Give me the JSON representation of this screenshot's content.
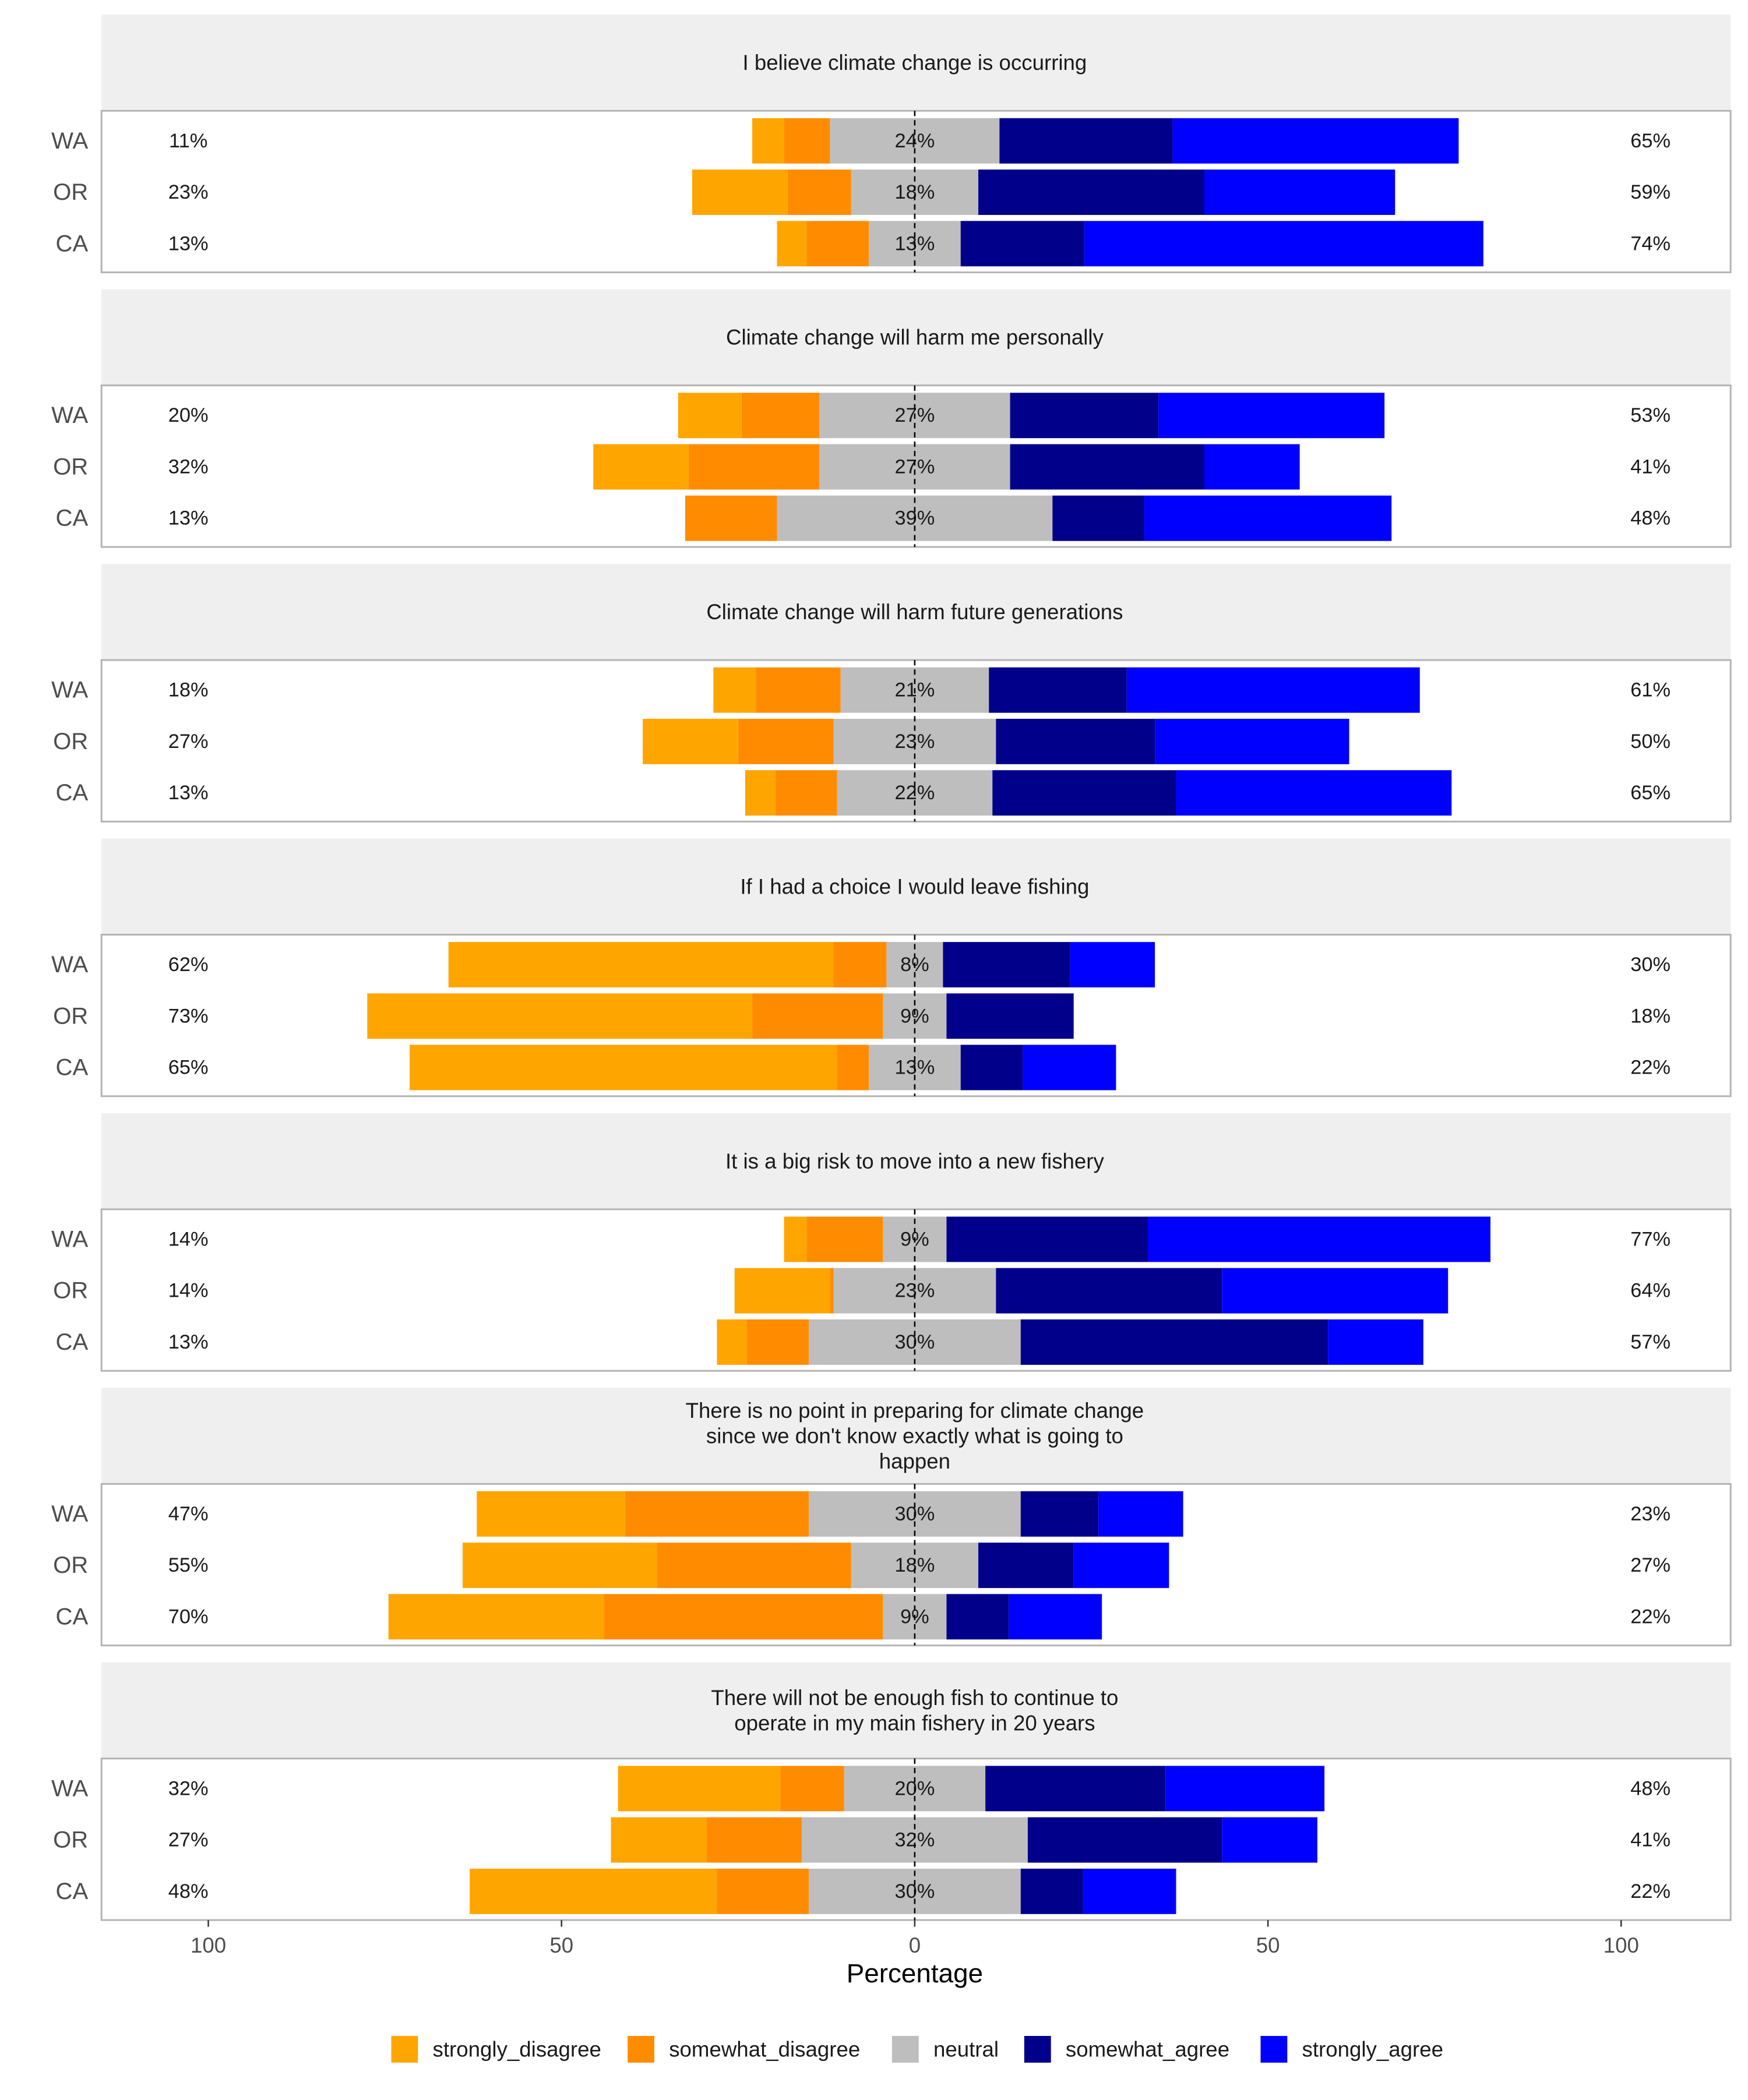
{
  "chart_data": {
    "type": "bar",
    "subtype": "diverging-stacked-likert",
    "xlabel": "Percentage",
    "xlim": [
      -100,
      100
    ],
    "x_ticks": [
      {
        "value": -100,
        "label": "100"
      },
      {
        "value": -50,
        "label": "50"
      },
      {
        "value": 0,
        "label": "0"
      },
      {
        "value": 50,
        "label": "50"
      },
      {
        "value": 100,
        "label": "100"
      }
    ],
    "categories": [
      "WA",
      "OR",
      "CA"
    ],
    "legend_position": "bottom",
    "legend": [
      {
        "key": "strongly_disagree",
        "label": "strongly_disagree",
        "color": "#FFA500"
      },
      {
        "key": "somewhat_disagree",
        "label": "somewhat_disagree",
        "color": "#FF8C00"
      },
      {
        "key": "neutral",
        "label": "neutral",
        "color": "#BEBEBE"
      },
      {
        "key": "somewhat_agree",
        "label": "somewhat_agree",
        "color": "#00008B"
      },
      {
        "key": "strongly_agree",
        "label": "strongly_agree",
        "color": "#0000FF"
      }
    ],
    "panels": [
      {
        "title": [
          "I believe climate change is occurring"
        ],
        "rows": [
          {
            "region": "WA",
            "left_label": "11%",
            "center_label": "24%",
            "right_label": "65%",
            "values": {
              "strongly_disagree": 4.5,
              "somewhat_disagree": 6.5,
              "neutral": 24,
              "somewhat_agree": 24.5,
              "strongly_agree": 40.5
            }
          },
          {
            "region": "OR",
            "left_label": "23%",
            "center_label": "18%",
            "right_label": "59%",
            "values": {
              "strongly_disagree": 13.5,
              "somewhat_disagree": 9.0,
              "neutral": 18,
              "somewhat_agree": 32.0,
              "strongly_agree": 27.0
            }
          },
          {
            "region": "CA",
            "left_label": "13%",
            "center_label": "13%",
            "right_label": "74%",
            "values": {
              "strongly_disagree": 4.2,
              "somewhat_disagree": 8.8,
              "neutral": 13,
              "somewhat_agree": 17.5,
              "strongly_agree": 56.5
            }
          }
        ]
      },
      {
        "title": [
          "Climate change will harm me personally"
        ],
        "rows": [
          {
            "region": "WA",
            "left_label": "20%",
            "center_label": "27%",
            "right_label": "53%",
            "values": {
              "strongly_disagree": 9.0,
              "somewhat_disagree": 11.0,
              "neutral": 27,
              "somewhat_agree": 21.0,
              "strongly_agree": 32.0
            }
          },
          {
            "region": "OR",
            "left_label": "32%",
            "center_label": "27%",
            "right_label": "41%",
            "values": {
              "strongly_disagree": 13.5,
              "somewhat_disagree": 18.5,
              "neutral": 27,
              "somewhat_agree": 27.5,
              "strongly_agree": 13.5
            }
          },
          {
            "region": "CA",
            "left_label": "13%",
            "center_label": "39%",
            "right_label": "48%",
            "values": {
              "strongly_disagree": 0,
              "somewhat_disagree": 13.0,
              "neutral": 39,
              "somewhat_agree": 13.0,
              "strongly_agree": 35.0
            }
          }
        ]
      },
      {
        "title": [
          "Climate change will harm future generations"
        ],
        "rows": [
          {
            "region": "WA",
            "left_label": "18%",
            "center_label": "21%",
            "right_label": "61%",
            "values": {
              "strongly_disagree": 6.0,
              "somewhat_disagree": 12.0,
              "neutral": 21,
              "somewhat_agree": 19.5,
              "strongly_agree": 41.5
            }
          },
          {
            "region": "OR",
            "left_label": "27%",
            "center_label": "23%",
            "right_label": "50%",
            "values": {
              "strongly_disagree": 13.5,
              "somewhat_disagree": 13.5,
              "neutral": 23,
              "somewhat_agree": 22.5,
              "strongly_agree": 27.5
            }
          },
          {
            "region": "CA",
            "left_label": "13%",
            "center_label": "22%",
            "right_label": "65%",
            "values": {
              "strongly_disagree": 4.3,
              "somewhat_disagree": 8.7,
              "neutral": 22,
              "somewhat_agree": 26.0,
              "strongly_agree": 39.0
            }
          }
        ]
      },
      {
        "title": [
          "If I had a choice I would leave fishing"
        ],
        "rows": [
          {
            "region": "WA",
            "left_label": "62%",
            "center_label": "8%",
            "right_label": "30%",
            "values": {
              "strongly_disagree": 54.5,
              "somewhat_disagree": 7.5,
              "neutral": 8,
              "somewhat_agree": 18.0,
              "strongly_agree": 12.0
            }
          },
          {
            "region": "OR",
            "left_label": "73%",
            "center_label": "9%",
            "right_label": "18%",
            "values": {
              "strongly_disagree": 54.5,
              "somewhat_disagree": 18.5,
              "neutral": 9,
              "somewhat_agree": 18.0,
              "strongly_agree": 0
            }
          },
          {
            "region": "CA",
            "left_label": "65%",
            "center_label": "13%",
            "right_label": "22%",
            "values": {
              "strongly_disagree": 60.5,
              "somewhat_disagree": 4.5,
              "neutral": 13,
              "somewhat_agree": 8.8,
              "strongly_agree": 13.2
            }
          }
        ]
      },
      {
        "title": [
          "It is a big risk to move into a new fishery"
        ],
        "rows": [
          {
            "region": "WA",
            "left_label": "14%",
            "center_label": "9%",
            "right_label": "77%",
            "values": {
              "strongly_disagree": 3.2,
              "somewhat_disagree": 10.8,
              "neutral": 9,
              "somewhat_agree": 28.5,
              "strongly_agree": 48.5
            }
          },
          {
            "region": "OR",
            "left_label": "14%",
            "center_label": "23%",
            "right_label": "64%",
            "values": {
              "strongly_disagree": 13.5,
              "somewhat_disagree": 0.5,
              "neutral": 23,
              "somewhat_agree": 32.0,
              "strongly_agree": 32.0
            }
          },
          {
            "region": "CA",
            "left_label": "13%",
            "center_label": "30%",
            "right_label": "57%",
            "values": {
              "strongly_disagree": 4.2,
              "somewhat_disagree": 8.8,
              "neutral": 30,
              "somewhat_agree": 43.5,
              "strongly_agree": 13.5
            }
          }
        ]
      },
      {
        "title": [
          "There is no point in preparing for climate change",
          "since we don't know exactly what is going to",
          "happen"
        ],
        "rows": [
          {
            "region": "WA",
            "left_label": "47%",
            "center_label": "30%",
            "right_label": "23%",
            "values": {
              "strongly_disagree": 21.0,
              "somewhat_disagree": 26.0,
              "neutral": 30,
              "somewhat_agree": 11.0,
              "strongly_agree": 12.0
            }
          },
          {
            "region": "OR",
            "left_label": "55%",
            "center_label": "18%",
            "right_label": "27%",
            "values": {
              "strongly_disagree": 27.5,
              "somewhat_disagree": 27.5,
              "neutral": 18,
              "somewhat_agree": 13.5,
              "strongly_agree": 13.5
            }
          },
          {
            "region": "CA",
            "left_label": "70%",
            "center_label": "9%",
            "right_label": "22%",
            "values": {
              "strongly_disagree": 30.5,
              "somewhat_disagree": 39.5,
              "neutral": 9,
              "somewhat_agree": 8.8,
              "strongly_agree": 13.2
            }
          }
        ]
      },
      {
        "title": [
          "There will not be enough fish to continue to",
          "operate in my main fishery in 20 years"
        ],
        "rows": [
          {
            "region": "WA",
            "left_label": "32%",
            "center_label": "20%",
            "right_label": "48%",
            "values": {
              "strongly_disagree": 23.0,
              "somewhat_disagree": 9.0,
              "neutral": 20,
              "somewhat_agree": 25.5,
              "strongly_agree": 22.5
            }
          },
          {
            "region": "OR",
            "left_label": "27%",
            "center_label": "32%",
            "right_label": "41%",
            "values": {
              "strongly_disagree": 13.5,
              "somewhat_disagree": 13.5,
              "neutral": 32,
              "somewhat_agree": 27.5,
              "strongly_agree": 13.5
            }
          },
          {
            "region": "CA",
            "left_label": "48%",
            "center_label": "30%",
            "right_label": "22%",
            "values": {
              "strongly_disagree": 35.0,
              "somewhat_disagree": 13.0,
              "neutral": 30,
              "somewhat_agree": 8.8,
              "strongly_agree": 13.2
            }
          }
        ]
      }
    ]
  }
}
